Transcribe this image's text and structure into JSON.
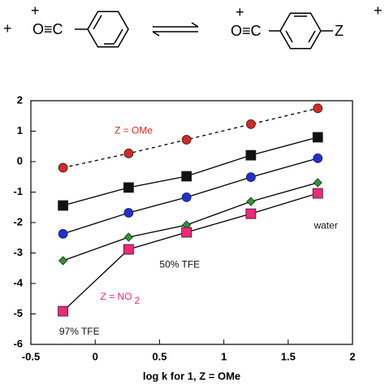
{
  "scheme": {
    "texts": [
      "+",
      "+",
      "O≡C",
      "+",
      "O≡C",
      "Z",
      "+"
    ]
  },
  "chart_data": {
    "type": "scatter",
    "x_label": "log k for 1, Z = OMe",
    "x": [
      -0.25,
      0.26,
      0.71,
      1.21,
      1.73
    ],
    "series": [
      {
        "color": "#d42a22",
        "marker": "circle",
        "line_style": "dashed",
        "values": [
          -0.2,
          0.27,
          0.72,
          1.23,
          1.75
        ]
      },
      {
        "color": "#111111",
        "marker": "square",
        "line_style": "solid",
        "values": [
          -1.44,
          -0.85,
          -0.48,
          0.21,
          0.8
        ]
      },
      {
        "color": "#1f2fd8",
        "marker": "circle",
        "line_style": "solid",
        "values": [
          -2.37,
          -1.68,
          -1.17,
          -0.51,
          0.11
        ]
      },
      {
        "color": "#2a9a2a",
        "marker": "diamond",
        "line_style": "solid",
        "values": [
          -3.25,
          -2.48,
          -2.08,
          -1.31,
          -0.69
        ]
      },
      {
        "color": "#f0287a",
        "marker": "square",
        "line_style": "solid",
        "values": [
          -4.91,
          -2.88,
          -2.32,
          -1.71,
          -1.04
        ]
      }
    ],
    "annotations": [
      {
        "text": "Z = OMe",
        "color": "#d42a22",
        "x": 0.15,
        "y": 1.0
      },
      {
        "text": "50% TFE",
        "color": "#111111",
        "x": 0.5,
        "y": -3.4
      },
      {
        "text": "Z = NO",
        "sub": "2",
        "color": "#f0287a",
        "x": 0.04,
        "y": -4.45
      },
      {
        "text": "97% TFE",
        "color": "#111111",
        "x": -0.28,
        "y": -5.6
      },
      {
        "text": "water",
        "color": "#111111",
        "x": 1.7,
        "y": -2.12
      }
    ],
    "xlim": [
      -0.5,
      2
    ],
    "ylim": [
      -6,
      2
    ],
    "xticks": [
      -0.5,
      0,
      0.5,
      1,
      1.5,
      2
    ],
    "yticks": [
      -6,
      -5,
      -4,
      -3,
      -2,
      -1,
      0,
      1,
      2
    ]
  }
}
